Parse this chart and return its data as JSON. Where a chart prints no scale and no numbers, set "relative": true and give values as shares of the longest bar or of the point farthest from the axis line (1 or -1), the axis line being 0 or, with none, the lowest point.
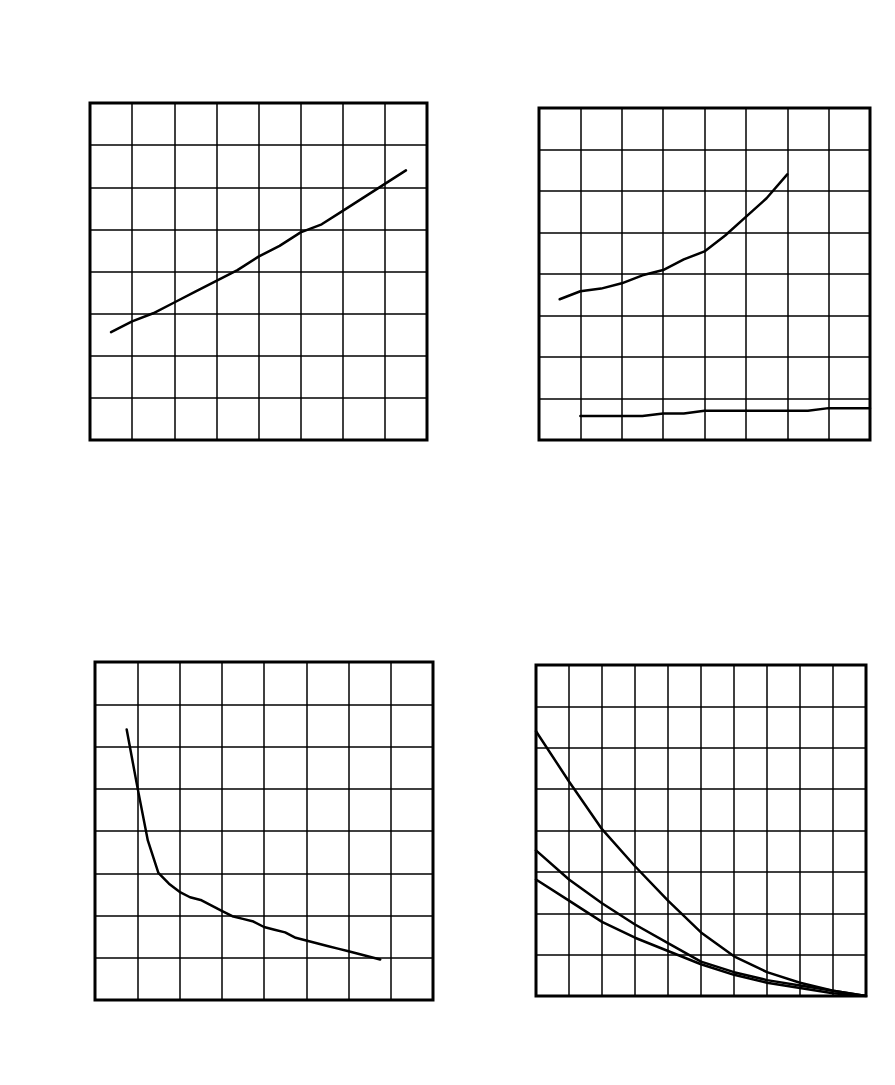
{
  "chart_data": [
    {
      "type": "line",
      "relative": true,
      "grid": true,
      "marker": "none",
      "line_style": "solid",
      "categories": [
        null,
        null,
        null,
        null,
        null,
        null,
        null,
        null,
        null,
        null,
        null,
        null,
        null,
        null,
        null,
        null,
        null
      ],
      "series": [
        {
          "color": "#000000",
          "values": [
            null,
            0.4,
            0.44,
            0.47,
            0.51,
            0.55,
            0.59,
            0.63,
            0.68,
            0.72,
            0.77,
            0.8,
            0.85,
            0.9,
            0.95,
            1.0,
            null
          ]
        }
      ]
    },
    {
      "type": "line",
      "relative": true,
      "grid": true,
      "marker": "none",
      "line_style": "solid",
      "categories": [
        null,
        null,
        null,
        null,
        null,
        null,
        null,
        null,
        null,
        null,
        null,
        null,
        null,
        null,
        null,
        null,
        null
      ],
      "series": [
        {
          "color": "#000000",
          "values": [
            null,
            0.53,
            0.56,
            0.57,
            0.59,
            0.62,
            0.64,
            0.68,
            0.71,
            0.77,
            0.84,
            0.91,
            1.0,
            null,
            null,
            null,
            null
          ]
        },
        {
          "color": "#000000",
          "values": [
            null,
            null,
            0.09,
            0.09,
            0.09,
            0.09,
            0.1,
            0.1,
            0.11,
            0.11,
            0.11,
            0.11,
            0.11,
            0.11,
            0.12,
            0.12,
            0.12
          ]
        }
      ]
    },
    {
      "type": "line",
      "relative": true,
      "grid": true,
      "marker": "none",
      "line_style": "solid",
      "categories": [
        null,
        null,
        null,
        null,
        null,
        null,
        null,
        null,
        null,
        null,
        null,
        null,
        null,
        null,
        null,
        null,
        null,
        null,
        null,
        null,
        null,
        null,
        null,
        null,
        null,
        null,
        null,
        null,
        null,
        null,
        null,
        null,
        null
      ],
      "series": [
        {
          "color": "#000000",
          "values": [
            null,
            null,
            null,
            1.0,
            0.79,
            0.59,
            0.47,
            0.43,
            0.4,
            0.38,
            0.37,
            0.35,
            0.33,
            0.31,
            0.3,
            0.29,
            0.27,
            0.26,
            0.25,
            0.23,
            0.22,
            0.21,
            0.2,
            0.19,
            0.18,
            0.17,
            0.16,
            0.15,
            null,
            null,
            null,
            null,
            null
          ]
        }
      ]
    },
    {
      "type": "line",
      "relative": true,
      "grid": true,
      "marker": "none",
      "line_style": "solid",
      "categories": [
        null,
        null,
        null,
        null,
        null,
        null,
        null,
        null,
        null,
        null,
        null
      ],
      "series": [
        {
          "color": "#000000",
          "values": [
            1.0,
            0.81,
            0.63,
            0.49,
            0.36,
            0.24,
            0.15,
            0.09,
            0.05,
            0.02,
            0.0
          ]
        },
        {
          "color": "#000000",
          "values": [
            0.55,
            0.44,
            0.35,
            0.27,
            0.2,
            0.13,
            0.09,
            0.06,
            0.04,
            0.02,
            0.0
          ]
        },
        {
          "color": "#000000",
          "values": [
            0.44,
            0.36,
            0.28,
            0.22,
            0.17,
            0.12,
            0.08,
            0.05,
            0.03,
            0.01,
            0.0
          ]
        }
      ]
    }
  ]
}
